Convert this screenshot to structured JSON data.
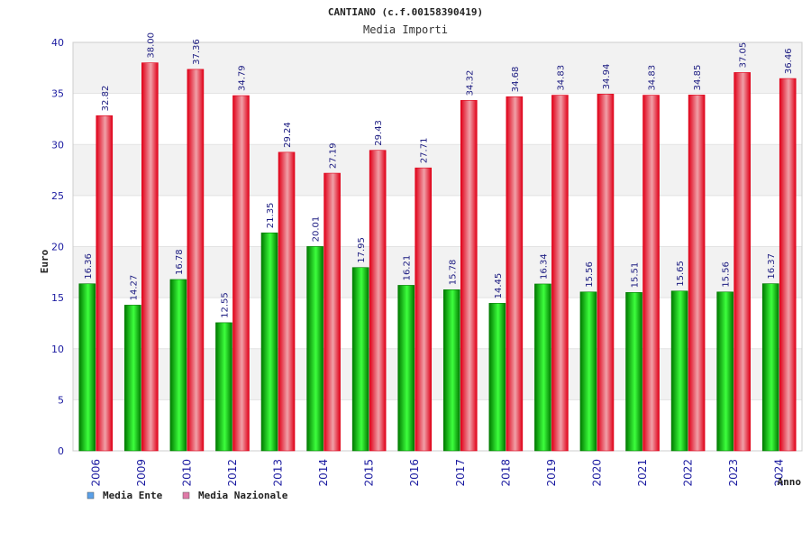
{
  "chart_data": {
    "type": "bar",
    "title": "CANTIANO (c.f.00158390419)",
    "subtitle": "Media Importi",
    "ylabel": "Euro",
    "xlabel": "Anno",
    "ylim": [
      0,
      40
    ],
    "yticks": [
      0,
      5,
      10,
      15,
      20,
      25,
      30,
      35,
      40
    ],
    "grid": true,
    "legend_position": "bottom-left",
    "categories": [
      "2006",
      "2009",
      "2010",
      "2012",
      "2013",
      "2014",
      "2015",
      "2016",
      "2017",
      "2018",
      "2019",
      "2020",
      "2021",
      "2022",
      "2023",
      "2024"
    ],
    "series": [
      {
        "name": "Media Ente",
        "values": [
          16.36,
          14.27,
          16.78,
          12.55,
          21.35,
          20.01,
          17.95,
          16.21,
          15.78,
          14.45,
          16.34,
          15.56,
          15.51,
          15.65,
          15.56,
          16.37
        ],
        "labels": [
          "16.36",
          "14.27",
          "16.78",
          "12.55",
          "21.35",
          "20.01",
          "17.95",
          "16.21",
          "15.78",
          "14.45",
          "16.34",
          "15.56",
          "15.51",
          "15.65",
          "15.56",
          "16.37"
        ]
      },
      {
        "name": "Media Nazionale",
        "values": [
          32.82,
          38.0,
          37.36,
          34.79,
          29.24,
          27.19,
          29.43,
          27.71,
          34.32,
          34.68,
          34.83,
          34.94,
          34.83,
          34.85,
          37.05,
          36.46
        ],
        "labels": [
          "32.82",
          "38.00",
          "37.36",
          "34.79",
          "29.24",
          "27.19",
          "29.43",
          "27.71",
          "34.32",
          "34.68",
          "34.83",
          "34.94",
          "34.83",
          "34.85",
          "37.05",
          "36.46"
        ]
      }
    ]
  },
  "legend": {
    "swatch_colors": [
      "#5aa0e8",
      "#e07aa8"
    ]
  },
  "colors": {
    "ente_dark": "#007a00",
    "ente_light": "#3dff3d",
    "naz_dark": "#e00018",
    "naz_light": "#f0a0a8",
    "band": "#f2f2f2",
    "axis": "#cccccc"
  }
}
